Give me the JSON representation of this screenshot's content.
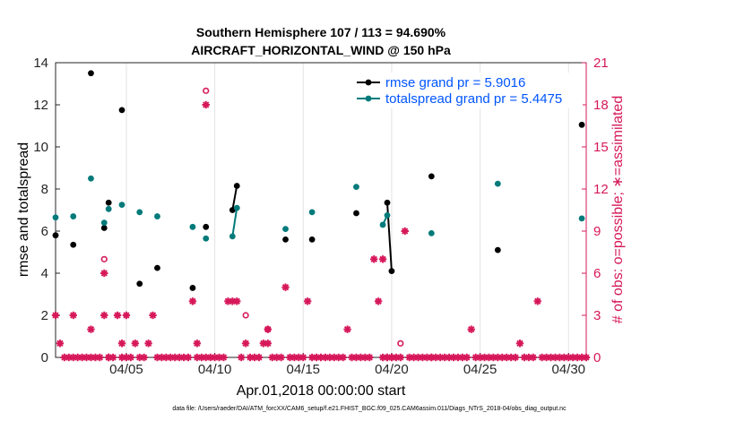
{
  "chart_data": {
    "type": "scatter",
    "title_line1": "Southern Hemisphere 107 / 113 = 94.690%",
    "title_line2": "AIRCRAFT_HORIZONTAL_WIND @ 150 hPa",
    "xlabel": "Apr.01,2018 00:00:00 start",
    "ylabel_left": "rmse and totalspread",
    "ylabel_right": "# of obs: o=possible; ∗=assimilated",
    "xlim": [
      1,
      31
    ],
    "ylim_left": [
      0,
      14
    ],
    "ylim_right": [
      0,
      21
    ],
    "x_ticks": [
      5,
      10,
      15,
      20,
      25,
      30
    ],
    "x_tick_labels": [
      "04/05",
      "04/10",
      "04/15",
      "04/20",
      "04/25",
      "04/30"
    ],
    "y_ticks_left": [
      0,
      2,
      4,
      6,
      8,
      10,
      12,
      14
    ],
    "y_tick_labels_left": [
      "0",
      "2",
      "4",
      "6",
      "8",
      "10",
      "12",
      "14"
    ],
    "y_ticks_right": [
      0,
      3,
      6,
      9,
      12,
      15,
      18,
      21
    ],
    "y_tick_labels_right": [
      "0",
      "3",
      "6",
      "9",
      "12",
      "15",
      "18",
      "21"
    ],
    "legend_position": "top-right",
    "series": [
      {
        "name": "rmse grand pr = 5.9016",
        "axis": "left",
        "color": "#000000",
        "x": [
          1.0,
          2.0,
          3.0,
          3.75,
          4.0,
          4.75,
          5.75,
          6.75,
          8.75,
          9.5,
          11.0,
          11.25,
          14.0,
          15.5,
          18.0,
          19.75,
          20.0,
          22.25,
          26.0,
          30.75
        ],
        "y": [
          5.8,
          5.35,
          13.5,
          6.15,
          7.35,
          11.75,
          3.5,
          4.25,
          3.3,
          6.2,
          7.0,
          8.15,
          5.6,
          5.6,
          6.85,
          7.35,
          4.1,
          8.6,
          5.1,
          11.05
        ],
        "segments": [
          [
            10,
            11
          ],
          [
            15,
            16
          ]
        ]
      },
      {
        "name": "totalspread grand pr = 5.4475",
        "axis": "left",
        "color": "#007a7a",
        "x": [
          1.0,
          2.0,
          3.0,
          3.75,
          4.0,
          4.75,
          5.75,
          6.75,
          8.75,
          9.5,
          11.0,
          11.25,
          14.0,
          15.5,
          18.0,
          19.5,
          19.75,
          22.25,
          26.0,
          30.75
        ],
        "y": [
          6.65,
          6.7,
          8.5,
          6.4,
          7.05,
          7.25,
          6.9,
          6.7,
          6.2,
          5.65,
          5.75,
          7.1,
          6.1,
          6.9,
          8.1,
          6.3,
          6.75,
          5.9,
          8.25,
          6.6
        ],
        "segments": [
          [
            10,
            11
          ],
          [
            15,
            16
          ]
        ]
      },
      {
        "name": "obs possible",
        "axis": "right",
        "color": "#d6185a",
        "marker": "o",
        "x": [
          3.75,
          9.5,
          11.75,
          13.0,
          20.5
        ],
        "y": [
          7,
          19,
          3,
          2,
          1
        ]
      },
      {
        "name": "obs assimilated",
        "axis": "right",
        "color": "#d6185a",
        "marker": "*",
        "x": [
          1.0,
          1.25,
          1.5,
          1.75,
          2.0,
          2.0,
          2.25,
          2.5,
          2.75,
          3.0,
          3.0,
          3.25,
          3.5,
          3.75,
          3.75,
          4.0,
          4.0,
          4.25,
          4.5,
          4.75,
          4.75,
          5.0,
          5.0,
          5.25,
          5.5,
          5.75,
          6.0,
          6.25,
          6.5,
          6.75,
          7.0,
          7.25,
          7.5,
          7.75,
          8.0,
          8.25,
          8.5,
          8.75,
          9.0,
          9.0,
          9.25,
          9.5,
          9.5,
          9.75,
          10.0,
          10.25,
          10.5,
          10.75,
          11.0,
          11.25,
          11.5,
          11.75,
          12.0,
          12.25,
          12.5,
          12.75,
          13.0,
          13.0,
          13.25,
          13.5,
          13.75,
          14.0,
          14.25,
          14.5,
          14.75,
          15.0,
          15.25,
          15.5,
          15.75,
          16.0,
          16.25,
          16.5,
          16.75,
          17.0,
          17.25,
          17.5,
          17.75,
          18.0,
          18.25,
          18.5,
          18.75,
          19.0,
          19.25,
          19.5,
          19.5,
          19.75,
          19.75,
          20.0,
          20.0,
          20.25,
          20.5,
          20.75,
          21.0,
          21.25,
          21.5,
          21.75,
          22.0,
          22.25,
          22.25,
          22.5,
          22.75,
          23.0,
          23.25,
          23.5,
          23.75,
          24.0,
          24.25,
          24.5,
          24.75,
          25.0,
          25.25,
          25.5,
          25.75,
          26.0,
          26.25,
          26.5,
          26.75,
          27.0,
          27.25,
          27.5,
          27.75,
          28.0,
          28.25,
          28.5,
          28.75,
          29.0,
          29.25,
          29.5,
          29.75,
          30.0,
          30.25,
          30.5,
          30.75,
          31.0
        ],
        "y": [
          3,
          1,
          0,
          0,
          0,
          3,
          0,
          0,
          0,
          0,
          2,
          0,
          0,
          6,
          3,
          0,
          0,
          0,
          3,
          0,
          1,
          0,
          3,
          0,
          1,
          0,
          0,
          1,
          3,
          0,
          0,
          0,
          0,
          0,
          0,
          0,
          0,
          4,
          0,
          1,
          0,
          18,
          0,
          0,
          0,
          0,
          0,
          4,
          4,
          4,
          0,
          1,
          0,
          0,
          0,
          1,
          2,
          1,
          0,
          0,
          0,
          5,
          0,
          0,
          0,
          0,
          4,
          0,
          0,
          0,
          0,
          0,
          0,
          0,
          0,
          2,
          0,
          0,
          0,
          0,
          0,
          7,
          4,
          7,
          0,
          0,
          0,
          0,
          0,
          0,
          0,
          9,
          0,
          0,
          0,
          0,
          0,
          0,
          0,
          0,
          0,
          0,
          0,
          0,
          0,
          0,
          0,
          2,
          0,
          0,
          0,
          0,
          0,
          0,
          0,
          0,
          0,
          0,
          1,
          0,
          0,
          0,
          4,
          0,
          0,
          0,
          0,
          0,
          0,
          0,
          0,
          0,
          0,
          0
        ]
      }
    ]
  },
  "footer": "data file: /Users/raeder/DAI/ATM_forcXX/CAM6_setup/f.e21.FHIST_BGC.f09_025.CAM6assim.011/Diags_NTrS_2018-04/obs_diag_output.nc"
}
